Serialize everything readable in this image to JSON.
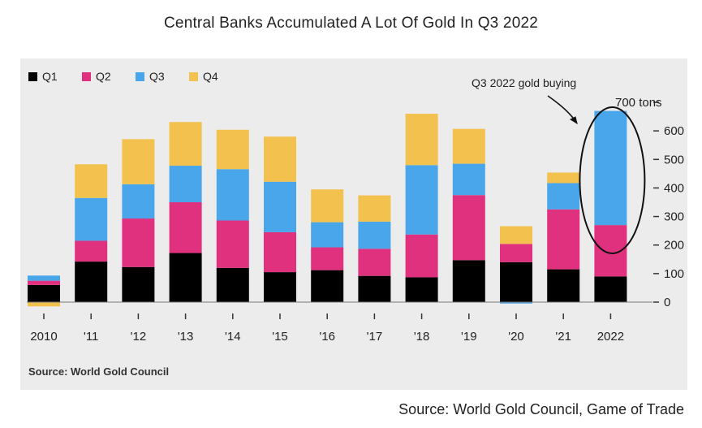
{
  "title": "Central Banks Accumulated A Lot Of Gold In Q3 2022",
  "panel_source": "Source: World Gold Council",
  "footer_source": "Source: World Gold Council, Game of Trade",
  "colors": {
    "Q1": "#000000",
    "Q2": "#e0317e",
    "Q3": "#4aa6ea",
    "Q4": "#f2c14e",
    "panel_bg": "#ececec"
  },
  "chart_data": {
    "type": "bar",
    "stacked": true,
    "categories": [
      "2010",
      "'11",
      "'12",
      "'13",
      "'14",
      "'15",
      "'16",
      "'17",
      "'18",
      "'19",
      "'20",
      "'21",
      "2022"
    ],
    "series": [
      {
        "name": "Q1",
        "values": [
          60,
          142,
          123,
          172,
          120,
          105,
          112,
          92,
          87,
          147,
          140,
          115,
          90
        ]
      },
      {
        "name": "Q2",
        "values": [
          15,
          73,
          170,
          178,
          166,
          140,
          80,
          95,
          150,
          228,
          64,
          210,
          180
        ]
      },
      {
        "name": "Q3",
        "values": [
          18,
          150,
          120,
          128,
          180,
          177,
          88,
          95,
          243,
          110,
          -5,
          92,
          400
        ]
      },
      {
        "name": "Q4",
        "values": [
          -15,
          118,
          158,
          153,
          138,
          158,
          115,
          92,
          180,
          122,
          62,
          37,
          0
        ]
      }
    ],
    "ylim": [
      0,
      700
    ],
    "yticks": [
      0,
      100,
      200,
      300,
      400,
      500,
      600
    ],
    "y_top_label": "700 tons",
    "y_axis_position": "right",
    "legend_position": "top-left",
    "annotation": {
      "text": "Q3 2022 gold buying",
      "target": "2022"
    },
    "grid": false
  }
}
